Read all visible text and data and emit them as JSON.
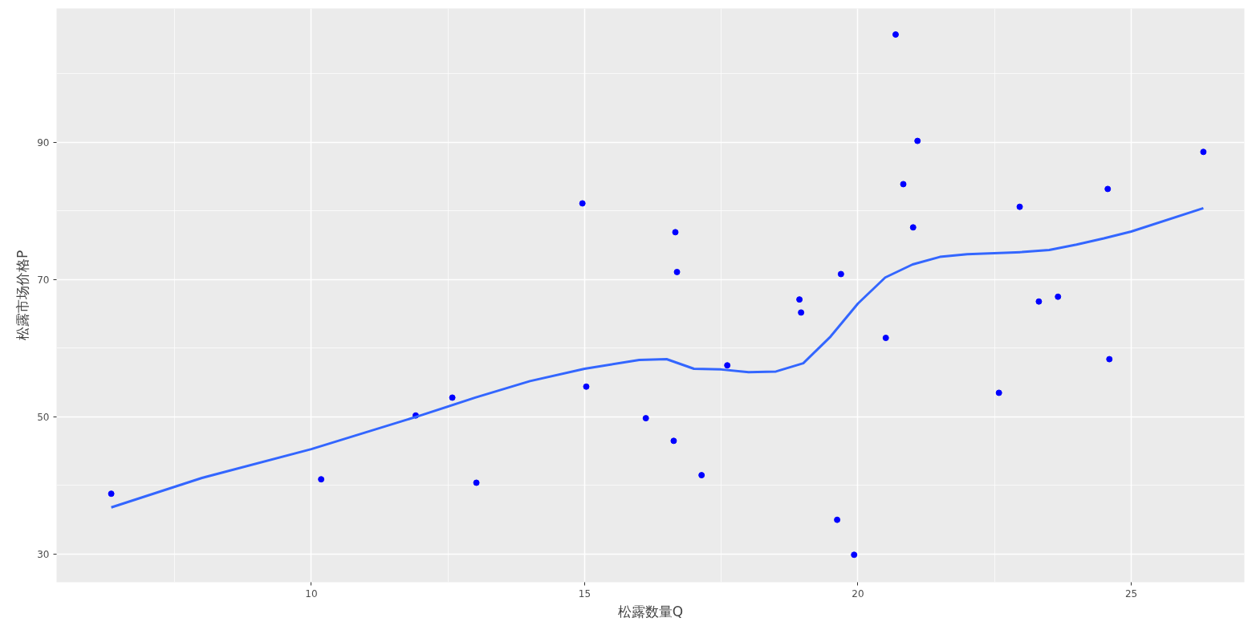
{
  "chart_data": {
    "type": "scatter",
    "xlabel": "松露数量Q",
    "ylabel": "松露市场价格P",
    "xlim": [
      5.34,
      27.07
    ],
    "ylim": [
      25.9,
      109.5
    ],
    "xticks": [
      10,
      15,
      20,
      25
    ],
    "yticks": [
      30,
      50,
      70,
      90
    ],
    "grid": true,
    "series": [
      {
        "marker": "circle",
        "color": "#0000ff",
        "x": [
          6.34,
          10.18,
          11.91,
          12.58,
          13.02,
          14.96,
          15.03,
          16.12,
          16.63,
          16.66,
          16.69,
          17.14,
          17.61,
          18.93,
          18.96,
          19.62,
          19.69,
          19.93,
          20.51,
          20.69,
          20.83,
          21.01,
          21.09,
          22.58,
          22.96,
          23.31,
          23.66,
          24.57,
          24.6,
          26.32
        ],
        "values": [
          38.8,
          40.9,
          50.2,
          52.8,
          40.4,
          81.1,
          54.4,
          49.8,
          46.5,
          76.9,
          71.1,
          41.5,
          57.5,
          67.1,
          65.2,
          35.0,
          70.8,
          29.9,
          61.5,
          105.7,
          83.9,
          77.6,
          90.2,
          53.5,
          80.6,
          66.8,
          67.5,
          83.2,
          58.4,
          88.6
        ]
      },
      {
        "type": "line",
        "color": "#3366ff",
        "x": [
          6.34,
          8,
          10,
          12,
          13,
          14,
          15,
          16,
          16.5,
          17,
          17.5,
          18,
          18.5,
          19,
          19.5,
          20,
          20.5,
          21,
          21.5,
          22,
          23,
          23.5,
          24,
          24.5,
          25,
          26.32
        ],
        "values": [
          36.8,
          41.1,
          45.3,
          50.2,
          52.8,
          55.2,
          57.0,
          58.3,
          58.4,
          57.0,
          56.9,
          56.5,
          56.6,
          57.8,
          61.7,
          66.5,
          70.3,
          72.2,
          73.3,
          73.7,
          74.0,
          74.3,
          75.1,
          76.0,
          77.0,
          80.4
        ]
      }
    ]
  }
}
